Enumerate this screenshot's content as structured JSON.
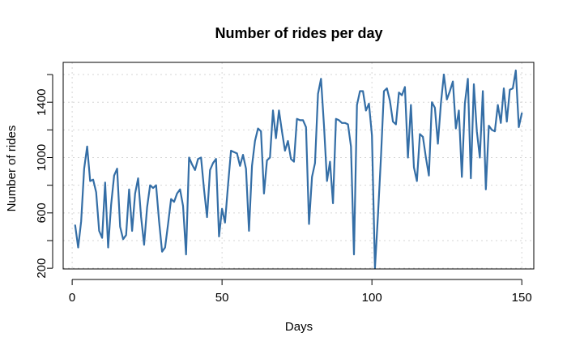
{
  "chart_data": {
    "type": "line",
    "title": "Number of rides per day",
    "xlabel": "Days",
    "ylabel": "Number of rides",
    "xlim": [
      -3,
      154
    ],
    "ylim": [
      195,
      1688
    ],
    "x_ticks": [
      0,
      50,
      100,
      150
    ],
    "x_tick_labels": [
      "0",
      "50",
      "100",
      "150"
    ],
    "y_ticks": [
      200,
      400,
      600,
      800,
      1000,
      1200,
      1400,
      1600
    ],
    "y_tick_labels": [
      "200",
      "",
      "600",
      "",
      "1000",
      "",
      "1400",
      ""
    ],
    "grid": true,
    "line_color": "#346ea6",
    "series": [
      {
        "x": [
          1,
          2,
          3,
          4,
          5,
          6,
          7,
          8,
          9,
          10,
          11,
          12,
          13,
          14,
          15,
          16,
          17,
          18,
          19,
          20,
          21,
          22,
          23,
          24,
          25,
          26,
          27,
          28,
          29,
          30,
          31,
          32,
          33,
          34,
          35,
          36,
          37,
          38,
          39,
          40,
          41,
          42,
          43,
          44,
          45,
          46,
          47,
          48,
          49,
          50,
          51,
          52,
          53,
          54,
          55,
          56,
          57,
          58,
          59,
          60,
          61,
          62,
          63,
          64,
          65,
          66,
          67,
          68,
          69,
          70,
          71,
          72,
          73,
          74,
          75,
          76,
          77,
          78,
          79,
          80,
          81,
          82,
          83,
          84,
          85,
          86,
          87,
          88,
          89,
          90,
          91,
          92,
          93,
          94,
          95,
          96,
          97,
          98,
          99,
          100,
          101,
          102,
          103,
          104,
          105,
          106,
          107,
          108,
          109,
          110,
          111,
          112,
          113,
          114,
          115,
          116,
          117,
          118,
          119,
          120,
          121,
          122,
          123,
          124,
          125,
          126,
          127,
          128,
          129,
          130,
          131,
          132,
          133,
          134,
          135,
          136,
          137,
          138,
          139,
          140,
          141,
          142,
          143,
          144,
          145,
          146,
          147,
          148,
          149,
          150
        ],
        "y": [
          510,
          350,
          540,
          920,
          1080,
          830,
          840,
          750,
          470,
          420,
          820,
          350,
          660,
          870,
          920,
          500,
          410,
          440,
          770,
          470,
          740,
          850,
          570,
          370,
          640,
          800,
          780,
          800,
          540,
          320,
          350,
          520,
          700,
          680,
          740,
          770,
          650,
          300,
          1000,
          950,
          910,
          990,
          1000,
          770,
          570,
          910,
          960,
          990,
          430,
          630,
          530,
          800,
          1050,
          1040,
          1030,
          940,
          1020,
          920,
          470,
          940,
          1120,
          1210,
          1190,
          740,
          980,
          1000,
          1340,
          1140,
          1340,
          1190,
          1050,
          1120,
          990,
          970,
          1280,
          1270,
          1270,
          1220,
          520,
          860,
          960,
          1460,
          1570,
          1230,
          830,
          970,
          670,
          1280,
          1270,
          1250,
          1250,
          1240,
          1080,
          300,
          1380,
          1480,
          1480,
          1340,
          1390,
          1160,
          200,
          580,
          1000,
          1480,
          1500,
          1410,
          1260,
          1240,
          1470,
          1450,
          1510,
          1000,
          1380,
          930,
          830,
          1170,
          1150,
          1000,
          870,
          1400,
          1360,
          1100,
          1390,
          1600,
          1420,
          1480,
          1550,
          1210,
          1340,
          860,
          1390,
          1570,
          850,
          1530,
          1190,
          1000,
          1480,
          770,
          1230,
          1200,
          1190,
          1380,
          1250,
          1500,
          1260,
          1490,
          1500,
          1630,
          1220,
          1320
        ]
      }
    ]
  }
}
